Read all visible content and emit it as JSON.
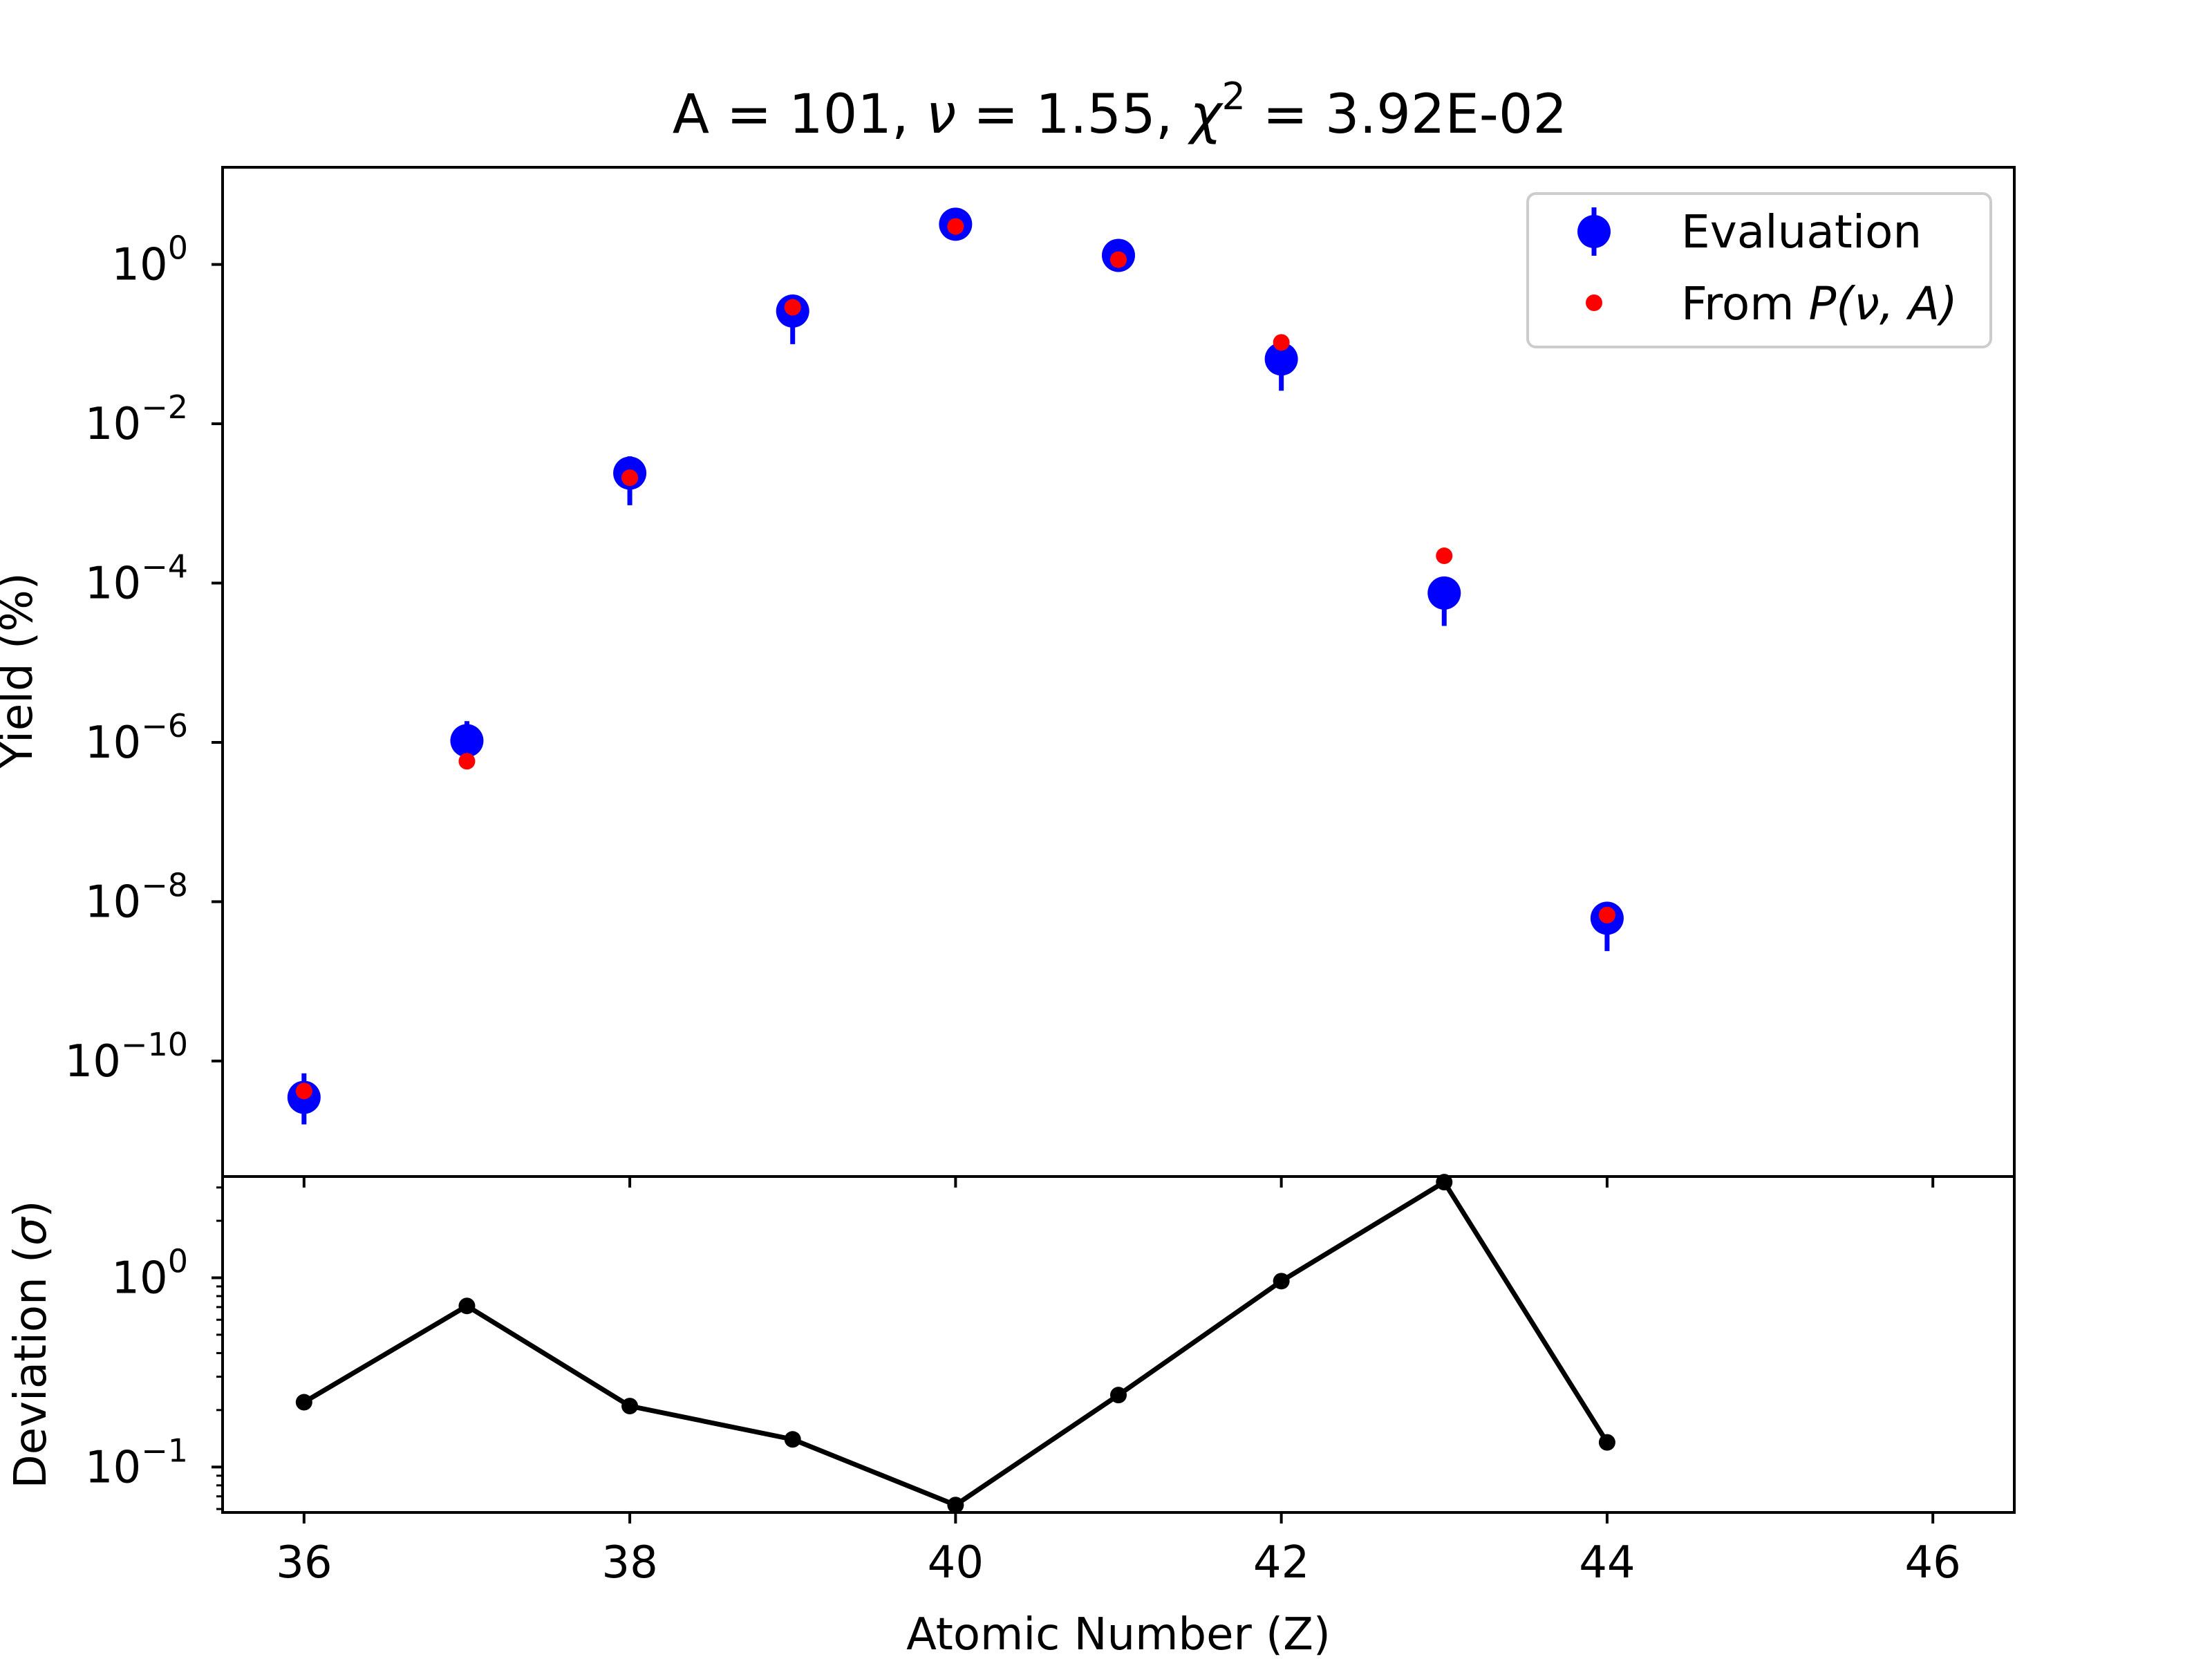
{
  "chart_data": [
    {
      "type": "scatter",
      "title_parts": {
        "a": "A = 101, ",
        "nu": "ν",
        "nu_rest": " = 1.55, ",
        "chi": "χ",
        "chi_sup": "2",
        "chi_rest": " = 3.92E-02"
      },
      "xlabel": "",
      "ylabel": "Yield (%)",
      "y_scale": "log",
      "xlim": [
        35.5,
        46.5
      ],
      "ylim_log10": [
        -11.45,
        1.22
      ],
      "y_ticks": [
        {
          "base": "10",
          "exp": "0",
          "log": 0
        },
        {
          "base": "10",
          "exp": "−2",
          "log": -2
        },
        {
          "base": "10",
          "exp": "−4",
          "log": -4
        },
        {
          "base": "10",
          "exp": "−6",
          "log": -6
        },
        {
          "base": "10",
          "exp": "−8",
          "log": -8
        },
        {
          "base": "10",
          "exp": "−10",
          "log": -10
        }
      ],
      "legend": {
        "placement": "top-right",
        "evaluation_label": "Evaluation",
        "model_label_prefix": "From ",
        "model_label_math": "P(ν, A)"
      },
      "series": [
        {
          "name": "Evaluation",
          "color": "#0000ff",
          "x": [
            36,
            37,
            38,
            39,
            40,
            41,
            42,
            43,
            44
          ],
          "y": [
            3.5e-11,
            1.05e-06,
            0.0024,
            0.26,
            3.2,
            1.3,
            0.065,
            7.5e-05,
            6.2e-09
          ],
          "err_low": [
            1.9e-11,
            5e-07,
            0.00145,
            0.16,
            0.25,
            0.15,
            0.039,
            4.6e-05,
            3.8e-09
          ],
          "err_high": [
            3.5e-11,
            8e-07,
            0.0015,
            0.12,
            0.3,
            0.15,
            0.06,
            4.5e-05,
            3.3e-09
          ]
        },
        {
          "name": "From P(ν, A)",
          "color": "#ff0000",
          "x": [
            36,
            37,
            38,
            39,
            40,
            41,
            42,
            43,
            44
          ],
          "y": [
            4.2e-11,
            5.8e-07,
            0.0021,
            0.29,
            3.0,
            1.15,
            0.105,
            0.00022,
            6.8e-09
          ]
        }
      ]
    },
    {
      "type": "line",
      "xlabel": "Atomic Number (Z)",
      "ylabel_prefix": "Deviation (",
      "ylabel_sigma": "σ",
      "ylabel_suffix": ")",
      "y_scale": "log",
      "xlim": [
        35.5,
        46.5
      ],
      "ylim_log10": [
        -1.24,
        0.535
      ],
      "x_ticks": [
        "36",
        "38",
        "40",
        "42",
        "44",
        "46"
      ],
      "x_tick_values": [
        36,
        38,
        40,
        42,
        44,
        46
      ],
      "y_ticks": [
        {
          "base": "10",
          "exp": "0",
          "log": 0
        },
        {
          "base": "10",
          "exp": "−1",
          "log": -1
        }
      ],
      "series": [
        {
          "color": "#000000",
          "x": [
            36,
            37,
            38,
            39,
            40,
            41,
            42,
            43,
            44
          ],
          "y": [
            0.22,
            0.71,
            0.21,
            0.14,
            0.063,
            0.24,
            0.96,
            3.2,
            0.135
          ]
        }
      ]
    }
  ]
}
